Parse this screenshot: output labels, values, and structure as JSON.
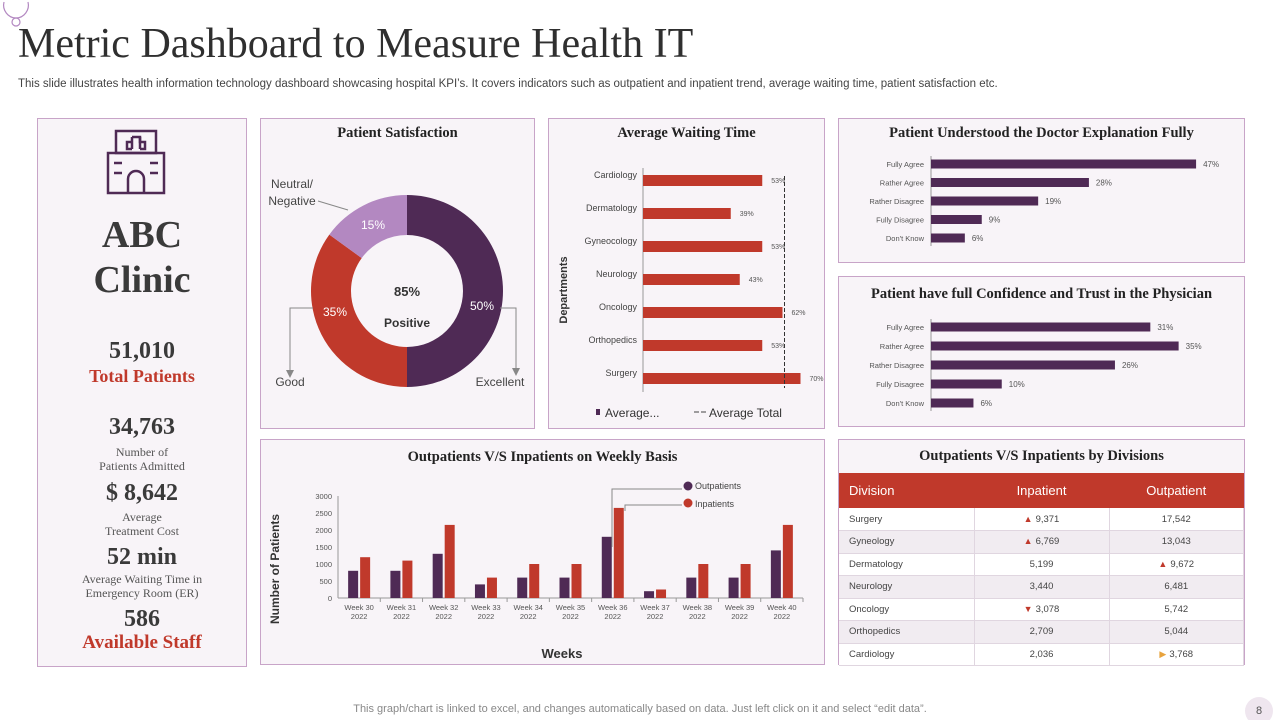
{
  "page": {
    "title": "Metric Dashboard to Measure Health IT",
    "subtitle": "This slide illustrates health information technology dashboard showcasing hospital KPI’s. It covers indicators such as outpatient and inpatient trend, average waiting time, patient satisfaction etc.",
    "footer": "This graph/chart is linked to excel, and changes automatically based on data. Just left click on it and select “edit data”.",
    "page_number": "8"
  },
  "colors": {
    "purple": "#4f2a55",
    "red": "#c0392b",
    "lilac": "#b388c1",
    "panel_bg": "#f8f4f8",
    "border": "#c8a4c8"
  },
  "clinic": {
    "name_line1": "ABC",
    "name_line2": "Clinic",
    "icon": "hospital-icon",
    "total_patients": {
      "value": "51,010",
      "label": "Total Patients"
    },
    "admitted": {
      "value": "34,763",
      "label_line1": "Number of",
      "label_line2": "Patients Admitted"
    },
    "cost": {
      "value": "$ 8,642",
      "label_line1": "Average",
      "label_line2": "Treatment Cost"
    },
    "waiting": {
      "value": "52 min",
      "label_line1": "Average Waiting Time in",
      "label_line2": "Emergency Room (ER)"
    },
    "staff": {
      "value": "586",
      "label": "Available Staff"
    }
  },
  "chart_data": [
    {
      "type": "pie",
      "title": "Patient Satisfaction",
      "donut": true,
      "slices": [
        {
          "name": "Excellent",
          "value": 50,
          "label": "50%"
        },
        {
          "name": "Good",
          "value": 35,
          "label": "35%"
        },
        {
          "name": "Neutral/ Negative",
          "value": 15,
          "label": "15%"
        }
      ],
      "callout_names": {
        "neutral_line1": "Neutral/",
        "neutral_line2": "Negative",
        "good": "Good",
        "excellent": "Excellent"
      },
      "center_value": "85%",
      "center_label": "Positive"
    },
    {
      "type": "bar",
      "orientation": "horizontal",
      "title": "Average Waiting Time",
      "ylabel": "Departments",
      "categories": [
        "Cardiology",
        "Dermatology",
        "Gyneocology",
        "Neurology",
        "Oncology",
        "Orthopedics",
        "Surgery"
      ],
      "values": [
        53,
        39,
        53,
        43,
        62,
        53,
        70
      ],
      "value_labels": [
        "53%",
        "39%",
        "53%",
        "43%",
        "62%",
        "53%",
        "70%"
      ],
      "reference_line": {
        "name": "Average Total",
        "value": 62
      },
      "xlim": [
        0,
        80
      ],
      "legend": [
        "Average...",
        "Average Total"
      ]
    },
    {
      "type": "bar",
      "orientation": "horizontal",
      "title": "Patient Understood the Doctor Explanation  Fully",
      "categories": [
        "Fully Agree",
        "Rather Agree",
        "Rather Disagree",
        "Fully Disagree",
        "Don't Know"
      ],
      "values": [
        47,
        28,
        19,
        9,
        6
      ],
      "value_labels": [
        "47%",
        "28%",
        "19%",
        "9%",
        "6%"
      ],
      "xlim": [
        0,
        50
      ]
    },
    {
      "type": "bar",
      "orientation": "horizontal",
      "title": "Patient have full Confidence and Trust in the Physician",
      "categories": [
        "Fully Agree",
        "Rather Agree",
        "Rather Disagree",
        "Fully Disagree",
        "Don't Know"
      ],
      "values": [
        31,
        35,
        26,
        10,
        6
      ],
      "value_labels": [
        "31%",
        "35%",
        "26%",
        "10%",
        "6%"
      ],
      "xlim": [
        0,
        40
      ]
    },
    {
      "type": "bar",
      "title": "Outpatients  V/S Inpatients  on Weekly Basis",
      "xlabel": "Weeks",
      "ylabel": "Number  of  Patients",
      "categories": [
        [
          "Week 30",
          "2022"
        ],
        [
          "Week 31",
          "2022"
        ],
        [
          "Week 32",
          "2022"
        ],
        [
          "Week 33",
          "2022"
        ],
        [
          "Week 34",
          "2022"
        ],
        [
          "Week 35",
          "2022"
        ],
        [
          "Week 36",
          "2022"
        ],
        [
          "Week 37",
          "2022"
        ],
        [
          "Week 38",
          "2022"
        ],
        [
          "Week 39",
          "2022"
        ],
        [
          "Week 40",
          "2022"
        ]
      ],
      "yticks": [
        "0",
        "500",
        "1000",
        "1500",
        "2000",
        "2500",
        "3000"
      ],
      "ylim": [
        0,
        3000
      ],
      "series": [
        {
          "name": "Outpatients",
          "color": "#4f2a55",
          "values": [
            800,
            800,
            1300,
            400,
            600,
            600,
            1800,
            200,
            600,
            600,
            1400
          ]
        },
        {
          "name": "Inpatients",
          "color": "#c0392b",
          "values": [
            1200,
            1100,
            2150,
            600,
            1000,
            1000,
            2650,
            250,
            1000,
            1000,
            2150
          ]
        }
      ]
    },
    {
      "type": "table",
      "title": "Outpatients  V/S Inpatients  by Divisions",
      "columns": [
        "Division",
        "Inpatient",
        "Outpatient"
      ],
      "rows": [
        {
          "division": "Surgery",
          "inpatient": "9,371",
          "in_marker": "▲",
          "outpatient": "17,542",
          "out_marker": ""
        },
        {
          "division": "Gyneology",
          "inpatient": "6,769",
          "in_marker": "▲",
          "outpatient": "13,043",
          "out_marker": ""
        },
        {
          "division": "Dermatology",
          "inpatient": "5,199",
          "in_marker": "",
          "outpatient": "9,672",
          "out_marker": "▲"
        },
        {
          "division": "Neurology",
          "inpatient": "3,440",
          "in_marker": "",
          "outpatient": "6,481",
          "out_marker": ""
        },
        {
          "division": "Oncology",
          "inpatient": "3,078",
          "in_marker": "▼",
          "outpatient": "5,742",
          "out_marker": ""
        },
        {
          "division": "Orthopedics",
          "inpatient": "2,709",
          "in_marker": "",
          "outpatient": "5,044",
          "out_marker": ""
        },
        {
          "division": "Cardiology",
          "inpatient": "2,036",
          "in_marker": "",
          "outpatient": "3,768",
          "out_marker": "▶"
        }
      ]
    }
  ]
}
